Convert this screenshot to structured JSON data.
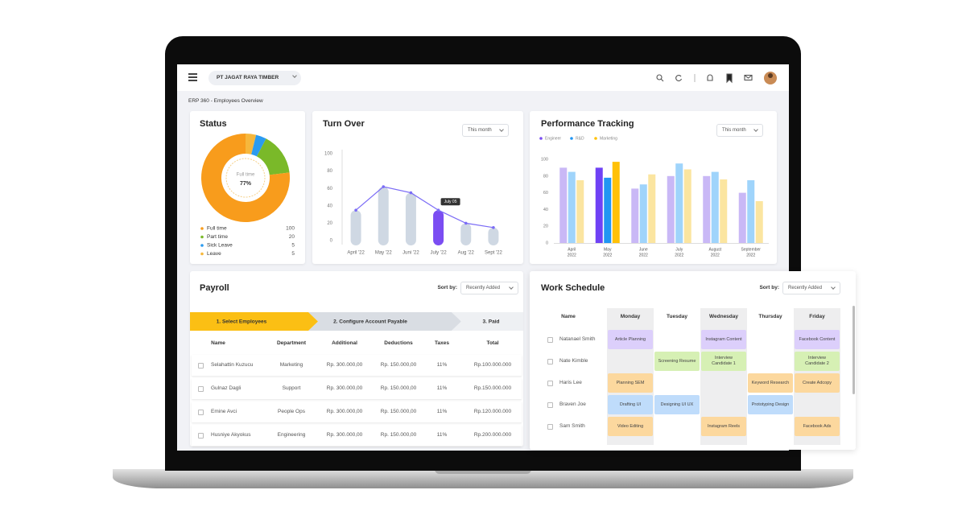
{
  "header": {
    "company": "PT JAGAT RAYA TIMBER",
    "page_title": "ERP 360 - Employees Overview"
  },
  "status": {
    "type": "pie",
    "title": "Status",
    "center_label": "Full time",
    "center_value": "77%",
    "categories": [
      "Full time",
      "Part time",
      "Sick Leave",
      "Leave"
    ],
    "values": [
      100,
      20,
      5,
      5
    ],
    "colors": [
      "#f89c1c",
      "#7ab929",
      "#2b9bf0",
      "#f6b73c"
    ]
  },
  "turnover": {
    "type": "bar",
    "title": "Turn Over",
    "filter": "This month",
    "categories": [
      "April '22",
      "May '22",
      "Juni '22",
      "July '22",
      "Aug '22",
      "Sept '22"
    ],
    "values": [
      35,
      62,
      55,
      35,
      20,
      15
    ],
    "colors": [
      "#cfd8e3",
      "#cfd8e3",
      "#cfd8e3",
      "#7b4df2",
      "#cfd8e3",
      "#cfd8e3"
    ],
    "line_color": "#7b6cf6",
    "tooltip": "July 05",
    "ylim": [
      0,
      100
    ],
    "yticks": [
      0,
      20,
      40,
      60,
      80,
      100
    ]
  },
  "performance": {
    "type": "bar",
    "title": "Performance Tracking",
    "filter": "This month",
    "categories": [
      "April",
      "May",
      "June",
      "July",
      "August",
      "September"
    ],
    "category_years": [
      "2022",
      "2022",
      "2022",
      "2022",
      "2022",
      "2022"
    ],
    "series": [
      {
        "name": "Engineer",
        "color": "#7b4df2",
        "values": [
          90,
          90,
          65,
          80,
          80,
          60
        ],
        "colors": [
          "#c9b8f6",
          "#6f42f5",
          "#c9b8f6",
          "#c9b8f6",
          "#c9b8f6",
          "#c9b8f6"
        ]
      },
      {
        "name": "R&D",
        "color": "#2196f3",
        "values": [
          85,
          78,
          70,
          95,
          85,
          75
        ],
        "colors": [
          "#9fd4fb",
          "#2196f3",
          "#9fd4fb",
          "#9fd4fb",
          "#9fd4fb",
          "#9fd4fb"
        ]
      },
      {
        "name": "Marketing",
        "color": "#ffc107",
        "values": [
          75,
          97,
          82,
          88,
          76,
          50
        ],
        "colors": [
          "#fbe5a0",
          "#ffc107",
          "#fbe5a0",
          "#fbe5a0",
          "#fbe5a0",
          "#fbe5a0"
        ]
      }
    ],
    "ylim": [
      0,
      100
    ],
    "yticks": [
      0,
      20,
      40,
      60,
      80,
      100
    ]
  },
  "payroll": {
    "title": "Payroll",
    "sort_label": "Sort by:",
    "sort_value": "Recently Added",
    "steps": [
      "1. Select Employees",
      "2. Configure Account Payable",
      "3. Paid"
    ],
    "columns": [
      "Name",
      "Department",
      "Additional",
      "Deductions",
      "Taxes",
      "Total"
    ],
    "rows": [
      [
        "Selahattin Kuzucu",
        "Marketing",
        "Rp. 300.000,00",
        "Rp. 150.000,00",
        "11%",
        "Rp.100.000.000"
      ],
      [
        "Gulnaz Dagli",
        "Support",
        "Rp. 300.000,00",
        "Rp. 150.000,00",
        "11%",
        "Rp.150.000.000"
      ],
      [
        "Emine Avci",
        "People Ops",
        "Rp. 300.000,00",
        "Rp. 150.000,00",
        "11%",
        "Rp.120.000.000"
      ],
      [
        "Husniye Akyokus",
        "Engineering",
        "Rp. 300.000,00",
        "Rp. 150.000,00",
        "11%",
        "Rp.200.000.000"
      ]
    ]
  },
  "schedule": {
    "title": "Work Schedule",
    "sort_label": "Sort by:",
    "sort_value": "Recently Added",
    "columns": [
      "Name",
      "Monday",
      "Tuesday",
      "Wednesday",
      "Thursday",
      "Friday"
    ],
    "rows": [
      {
        "name": "Natanael Smith",
        "cells": [
          {
            "text": "Article Planning",
            "color": "#dccffb"
          },
          null,
          {
            "text": "Instagram Content",
            "color": "#dccffb"
          },
          null,
          {
            "text": "Facebook Content",
            "color": "#dccffb"
          }
        ]
      },
      {
        "name": "Nate Kimble",
        "cells": [
          null,
          {
            "text": "Screening Resume",
            "color": "#d6f0b4"
          },
          {
            "text": "Interview Candidate 1",
            "color": "#d6f0b4"
          },
          null,
          {
            "text": "Interview Candidate 2",
            "color": "#d6f0b4"
          }
        ]
      },
      {
        "name": "Haris Lee",
        "cells": [
          {
            "text": "Planning SEM",
            "color": "#fcd89e"
          },
          null,
          null,
          {
            "text": "Keyword Research",
            "color": "#fcd89e"
          },
          {
            "text": "Create Adcopy",
            "color": "#fcd89e"
          }
        ]
      },
      {
        "name": "Braven Joe",
        "cells": [
          {
            "text": "Drafting UI",
            "color": "#bfdcfb"
          },
          {
            "text": "Designing UI UX",
            "color": "#bfdcfb"
          },
          null,
          {
            "text": "Prototyping Design",
            "color": "#bfdcfb"
          },
          null
        ]
      },
      {
        "name": "Sam Smith",
        "cells": [
          {
            "text": "Video Editing",
            "color": "#fcd89e"
          },
          null,
          {
            "text": "Instagram Reels",
            "color": "#fcd89e"
          },
          null,
          {
            "text": "Facebook Ads",
            "color": "#fcd89e"
          }
        ]
      }
    ]
  }
}
